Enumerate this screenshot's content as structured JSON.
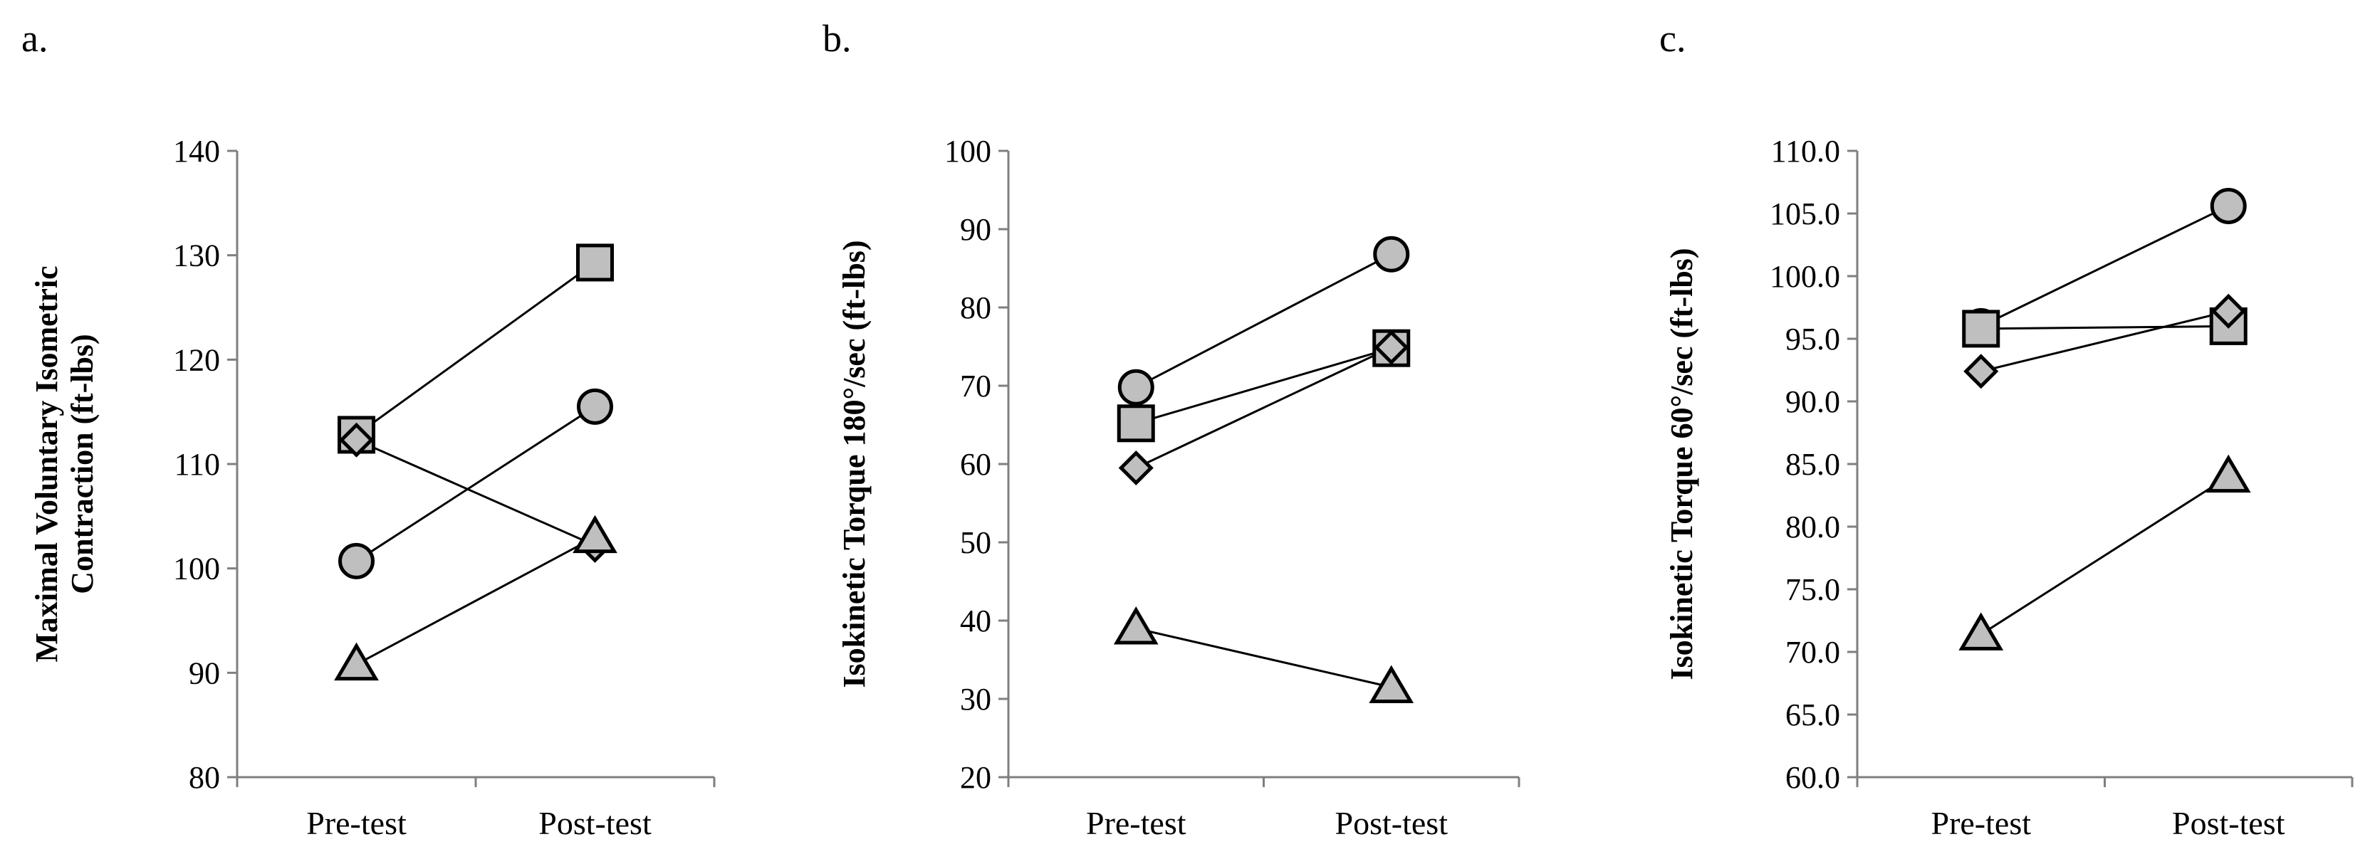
{
  "chart_data": [
    {
      "type": "line",
      "panel_label": "a.",
      "ylabel_lines": [
        "Maximal Voluntary Isometric",
        "Contraction (ft-lbs)"
      ],
      "ylabel_bold": true,
      "categories": [
        "Pre-test",
        "Post-test"
      ],
      "ylim": [
        80,
        140
      ],
      "yticks": [
        80,
        90,
        100,
        110,
        120,
        130,
        140
      ],
      "tick_decimals": 0,
      "series": [
        {
          "marker": "circle",
          "values": [
            100.7,
            115.5
          ]
        },
        {
          "marker": "square",
          "values": [
            112.8,
            129.3
          ]
        },
        {
          "marker": "diamond",
          "values": [
            112.3,
            102.2
          ]
        },
        {
          "marker": "triangle",
          "values": [
            90.8,
            103.0
          ]
        }
      ]
    },
    {
      "type": "line",
      "panel_label": "b.",
      "ylabel_lines": [
        "Isokinetic Torque 180°/sec (ft-lbs)"
      ],
      "ylabel_bold": true,
      "categories": [
        "Pre-test",
        "Post-test"
      ],
      "ylim": [
        20,
        100
      ],
      "yticks": [
        20,
        30,
        40,
        50,
        60,
        70,
        80,
        90,
        100
      ],
      "tick_decimals": 0,
      "series": [
        {
          "marker": "circle",
          "values": [
            69.8,
            86.8
          ]
        },
        {
          "marker": "square",
          "values": [
            65.2,
            74.8
          ]
        },
        {
          "marker": "diamond",
          "values": [
            59.5,
            74.9
          ]
        },
        {
          "marker": "triangle",
          "values": [
            39.0,
            31.5
          ]
        }
      ]
    },
    {
      "type": "line",
      "panel_label": "c.",
      "ylabel_lines": [
        "Isokinetic Torque 60°/sec (ft-lbs)"
      ],
      "ylabel_bold": true,
      "categories": [
        "Pre-test",
        "Post-test"
      ],
      "ylim": [
        60,
        110
      ],
      "yticks": [
        60,
        65,
        70,
        75,
        80,
        85,
        90,
        95,
        100,
        105,
        110
      ],
      "tick_decimals": 1,
      "series": [
        {
          "marker": "circle",
          "values": [
            96.0,
            105.6
          ]
        },
        {
          "marker": "square",
          "values": [
            95.8,
            96.0
          ]
        },
        {
          "marker": "diamond",
          "values": [
            92.4,
            97.2
          ]
        },
        {
          "marker": "triangle",
          "values": [
            71.4,
            84.0
          ]
        }
      ]
    }
  ]
}
